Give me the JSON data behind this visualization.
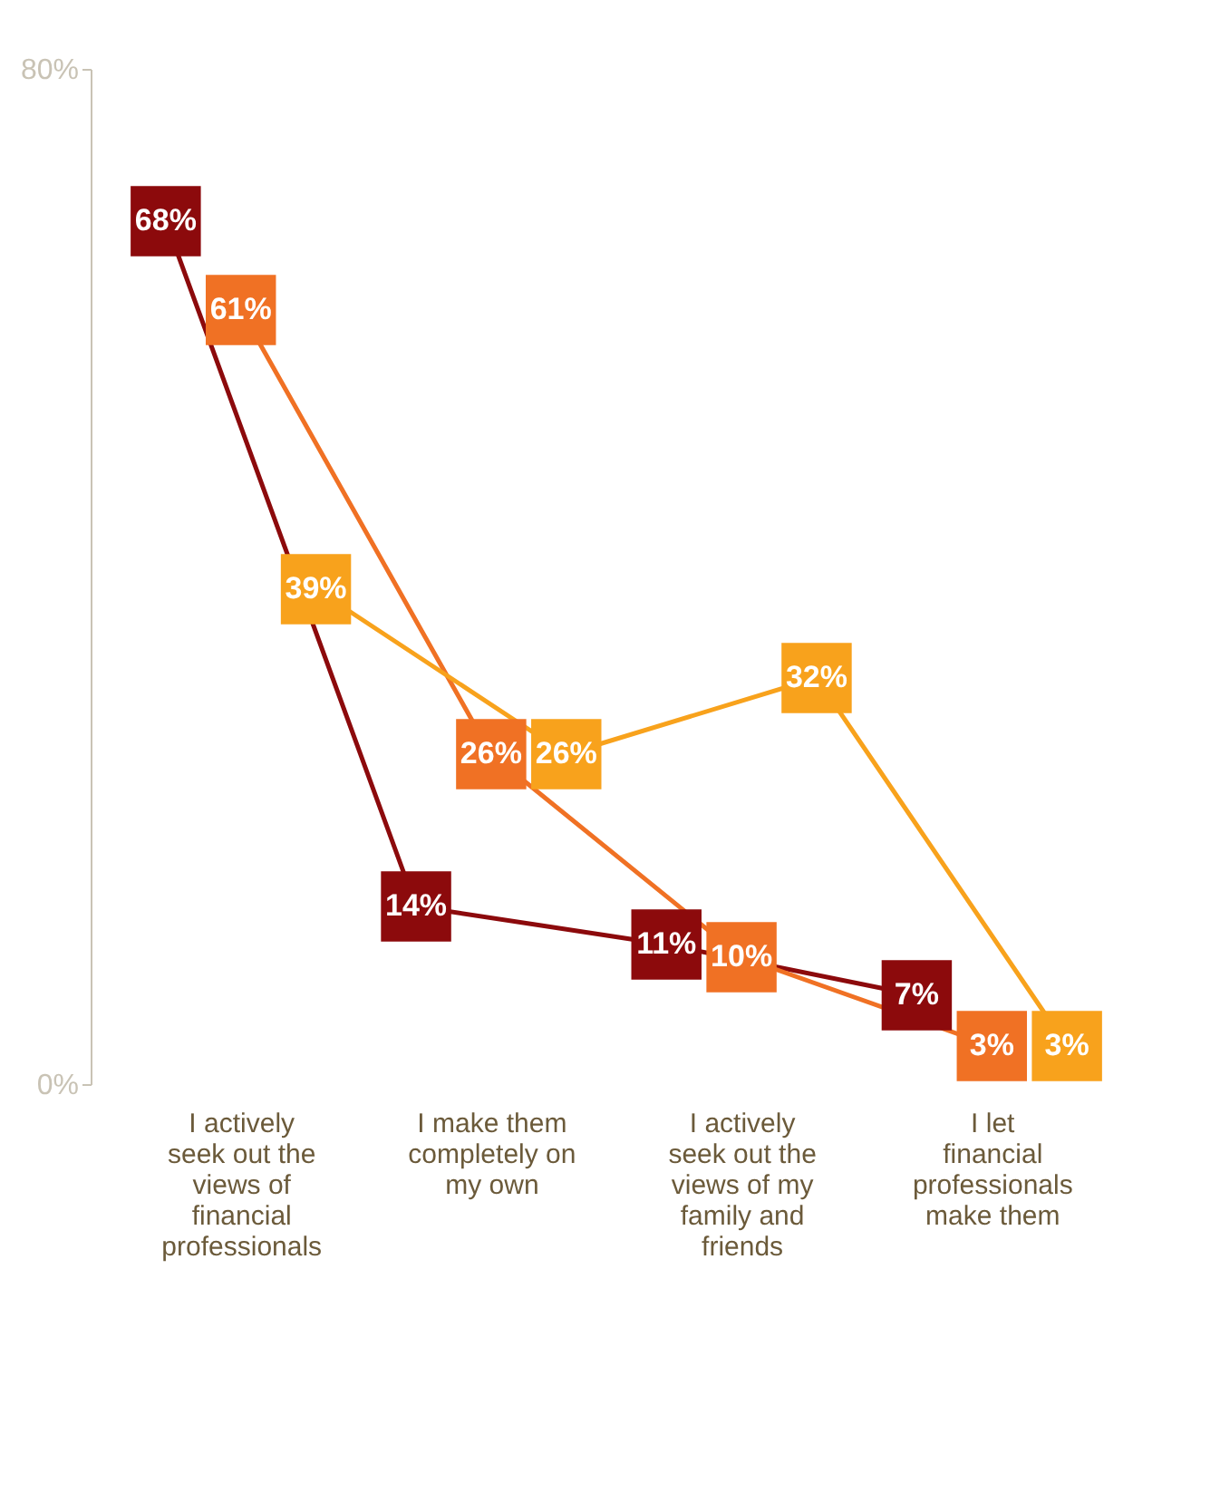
{
  "chart_data": {
    "type": "line",
    "categories": [
      "I actively seek out the views of financial professionals",
      "I make them completely on my own",
      "I actively seek out the views of my family and friends",
      "I let financial professionals make them"
    ],
    "series": [
      {
        "color": "#8c0a0c",
        "values": [
          68,
          14,
          11,
          7
        ]
      },
      {
        "color": "#f07124",
        "values": [
          61,
          26,
          10,
          3
        ]
      },
      {
        "color": "#f8a21c",
        "values": [
          39,
          26,
          32,
          3
        ]
      }
    ],
    "ylim": [
      0,
      80
    ],
    "yticks": [
      {
        "value": 0,
        "label": "0%"
      },
      {
        "value": 80,
        "label": "80%"
      }
    ],
    "value_labels": [
      [
        "68%",
        "14%",
        "11%",
        "7%"
      ],
      [
        "61%",
        "26%",
        "10%",
        "3%"
      ],
      [
        "39%",
        "26%",
        "32%",
        "3%"
      ]
    ],
    "marker": "square",
    "line_style": "solid",
    "grid": false,
    "legend": false
  }
}
